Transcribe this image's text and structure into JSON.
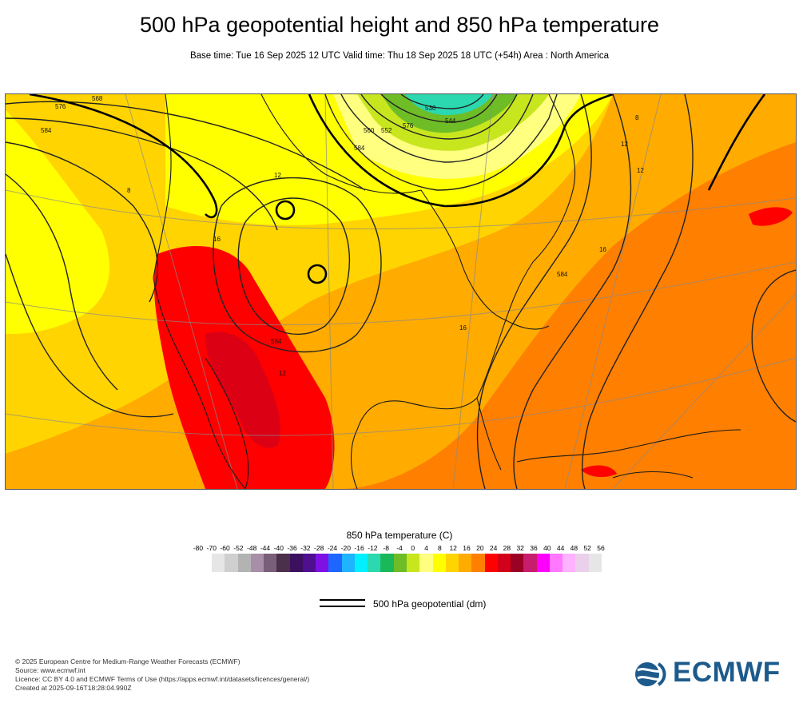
{
  "header": {
    "title": "500 hPa geopotential height and 850 hPa temperature",
    "subtitle": "Base time: Tue 16 Sep 2025 12 UTC Valid time: Thu 18 Sep 2025 18 UTC (+54h) Area : North America"
  },
  "map": {
    "contour_labels": [
      "568",
      "576",
      "584",
      "560",
      "552",
      "544",
      "536",
      "584",
      "576",
      "584",
      "12",
      "12",
      "8",
      "16",
      "16",
      "12",
      "8",
      "12",
      "16",
      "584"
    ]
  },
  "legend": {
    "title": "850 hPa temperature (C)",
    "ticks": [
      "-80",
      "-70",
      "-60",
      "-52",
      "-48",
      "-44",
      "-40",
      "-36",
      "-32",
      "-28",
      "-24",
      "-20",
      "-16",
      "-12",
      "-8",
      "-4",
      "0",
      "4",
      "8",
      "12",
      "16",
      "20",
      "24",
      "28",
      "32",
      "36",
      "40",
      "44",
      "48",
      "52",
      "56"
    ],
    "colors": [
      "#e6e6e6",
      "#cfcfcf",
      "#b3b3b3",
      "#a78fa7",
      "#7a5f7a",
      "#4b2f4b",
      "#3c0f5f",
      "#4e0f91",
      "#7f11e5",
      "#1d66ff",
      "#1fb4ff",
      "#00f0ff",
      "#2bd8b0",
      "#1bb85a",
      "#6fbd26",
      "#c8e61e",
      "#ffff80",
      "#ffff00",
      "#ffd400",
      "#ffab00",
      "#ff7f00",
      "#ff0000",
      "#d30019",
      "#9b0025",
      "#c81d6e",
      "#ff00ff",
      "#ff78ff",
      "#ffb2ff",
      "#ead0ea",
      "#e6e6e6"
    ],
    "contour_label": "500 hPa geopotential (dm)"
  },
  "footer": {
    "lines": [
      "© 2025 European Centre for Medium-Range Weather Forecasts (ECMWF)",
      "Source: www.ecmwf.int",
      "Licence: CC BY 4.0 and ECMWF Terms of Use (https://apps.ecmwf.int/datasets/licences/general/)",
      "Created at 2025-09-16T18:28:04.990Z"
    ],
    "logo_text": "ECMWF"
  }
}
